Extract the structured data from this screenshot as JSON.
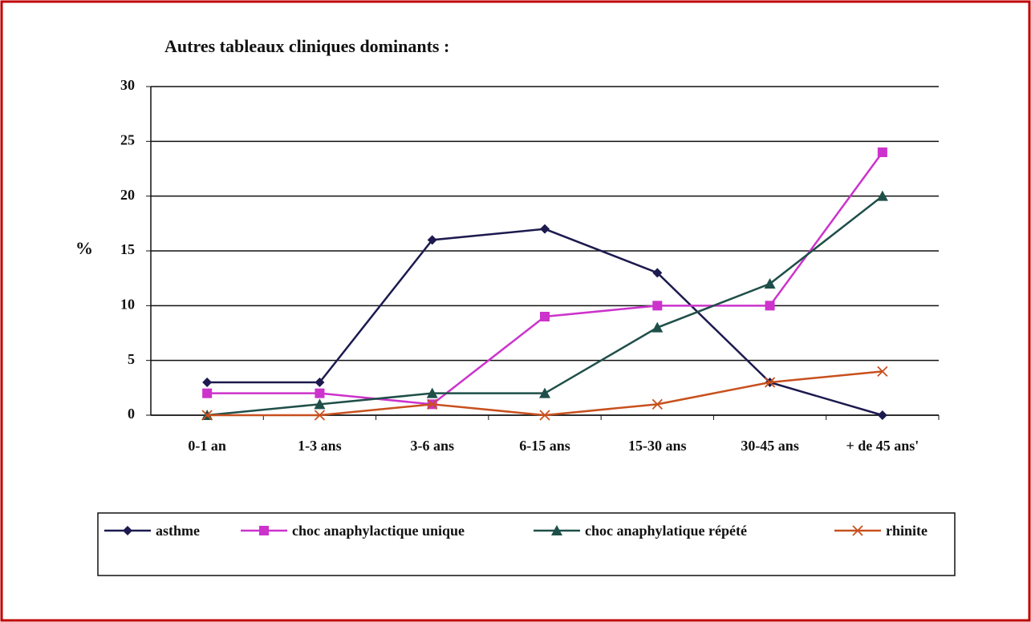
{
  "chart_data": {
    "type": "line",
    "title": "Autres tableaux cliniques dominants :",
    "y_label": "%",
    "categories": [
      "0-1 an",
      "1-3 ans",
      "3-6 ans",
      "6-15 ans",
      "15-30 ans",
      "30-45 ans",
      "+ de 45 ans'"
    ],
    "series": [
      {
        "name": "asthme",
        "color": "#1c1a4e",
        "marker": "diamond",
        "values": [
          3,
          3,
          16,
          17,
          13,
          3,
          0
        ]
      },
      {
        "name": "choc anaphylactique unique",
        "color": "#cc33cc",
        "marker": "square",
        "values": [
          2,
          2,
          1,
          9,
          10,
          10,
          24
        ]
      },
      {
        "name": "choc anaphylatique répété",
        "color": "#1f4f49",
        "marker": "triangle",
        "values": [
          0,
          1,
          2,
          2,
          8,
          12,
          20
        ]
      },
      {
        "name": "rhinite",
        "color": "#c8501e",
        "marker": "x",
        "values": [
          0,
          0,
          1,
          0,
          1,
          3,
          4
        ]
      }
    ],
    "ylim": [
      0,
      30
    ],
    "yticks": [
      0,
      5,
      10,
      15,
      20,
      25,
      30
    ],
    "grid": true
  }
}
